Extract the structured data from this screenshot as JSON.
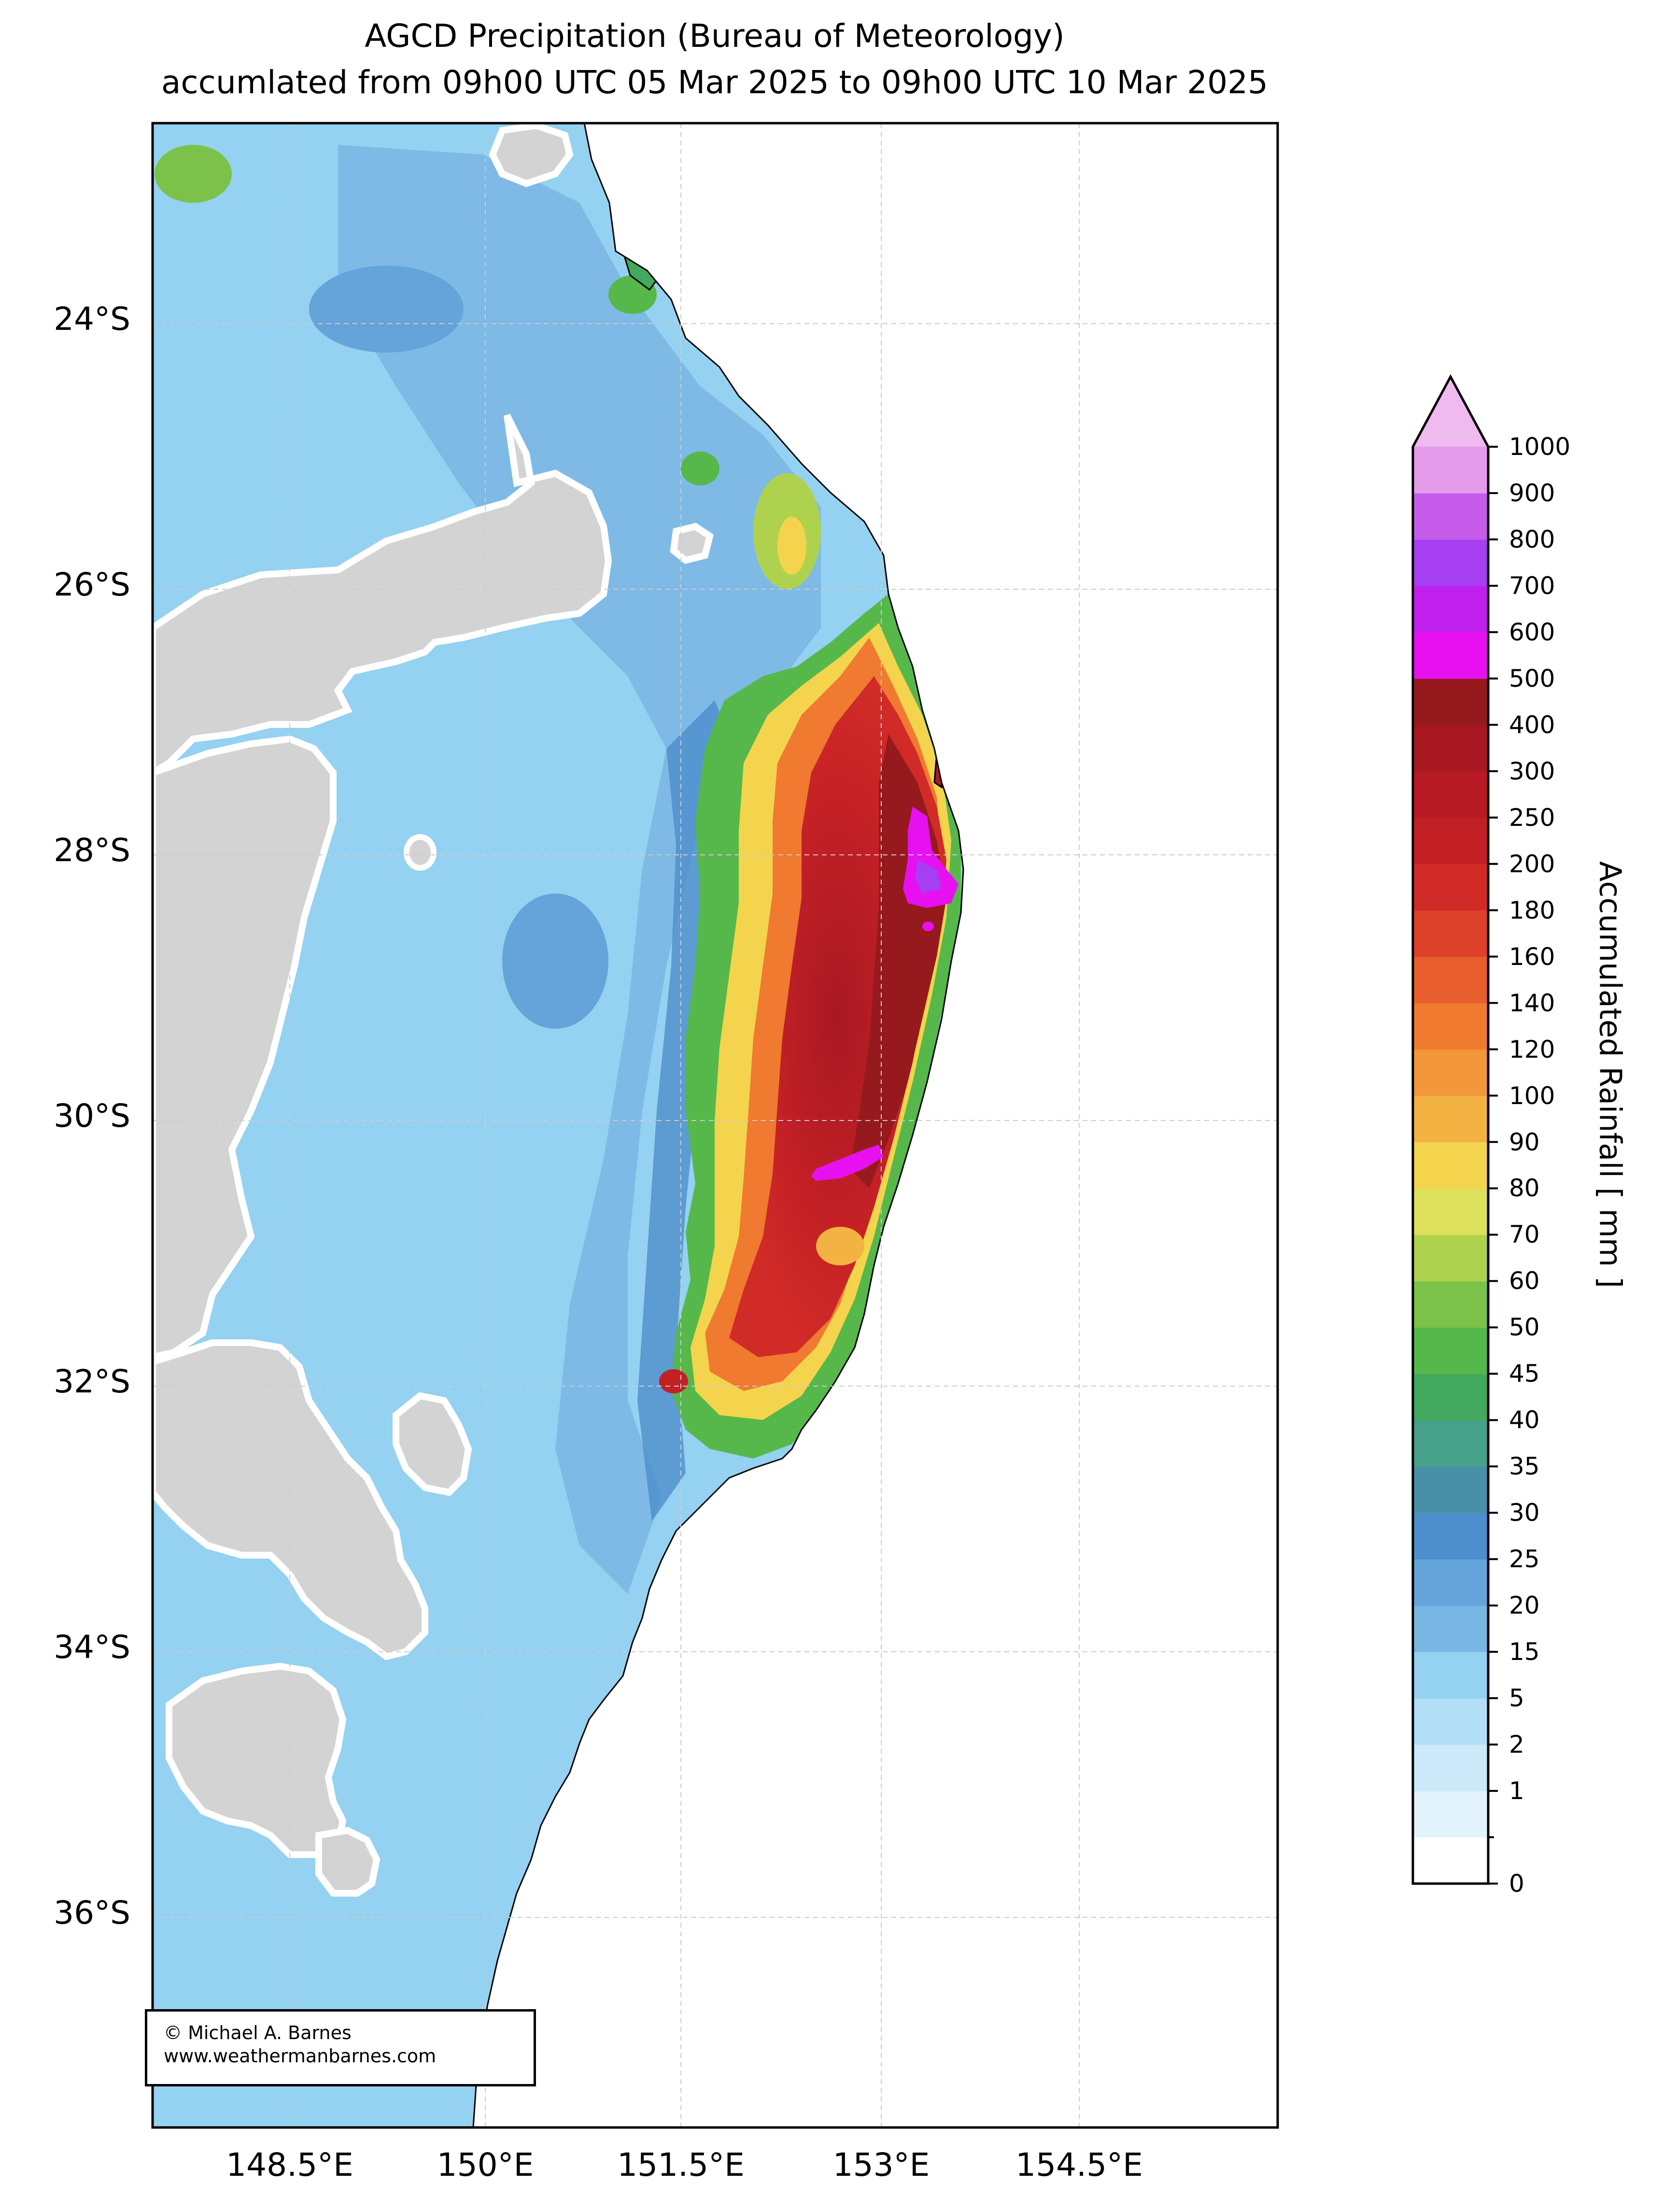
{
  "title": {
    "line1": "AGCD Precipitation (Bureau of Meteorology)",
    "line2": "accumlated from 09h00 UTC 05 Mar 2025 to 09h00 UTC 10 Mar 2025"
  },
  "map": {
    "lat_labels": [
      "24°S",
      "26°S",
      "28°S",
      "30°S",
      "32°S",
      "34°S",
      "36°S"
    ],
    "lon_labels": [
      "148.5°E",
      "150°E",
      "151.5°E",
      "153°E",
      "154.5°E"
    ],
    "colors": {
      "ocean": "#ffffff",
      "masked_land": "#d3d3d3",
      "coast": "#000000",
      "grid": "#cccccc"
    }
  },
  "colorbar": {
    "label": "Accumulated Rainfall [ mm ]",
    "tick_labels": [
      "0",
      "1",
      "2",
      "5",
      "15",
      "20",
      "25",
      "30",
      "35",
      "40",
      "45",
      "50",
      "60",
      "70",
      "80",
      "90",
      "100",
      "120",
      "140",
      "160",
      "180",
      "200",
      "250",
      "300",
      "400",
      "500",
      "600",
      "700",
      "800",
      "900",
      "1000"
    ],
    "colors": [
      "#ffffff",
      "#e3f3fb",
      "#cce9f9",
      "#b2def7",
      "#95d1f0",
      "#7ab6e3",
      "#64a4da",
      "#4d8fcc",
      "#4a8fa8",
      "#47a08a",
      "#43a95e",
      "#56b84a",
      "#7cc24a",
      "#afd24e",
      "#dde05b",
      "#f4d44d",
      "#f2b342",
      "#f2973a",
      "#f07a30",
      "#e85e2c",
      "#de4129",
      "#d12b27",
      "#c32026",
      "#b71a23",
      "#a81822",
      "#961a1d",
      "#e610f0",
      "#c020ee",
      "#a63ef2",
      "#c45ce9",
      "#e59bec",
      "#eebaf0"
    ]
  },
  "credit": {
    "line1": "© Michael A. Barnes",
    "line2": "www.weathermanbarnes.com"
  }
}
